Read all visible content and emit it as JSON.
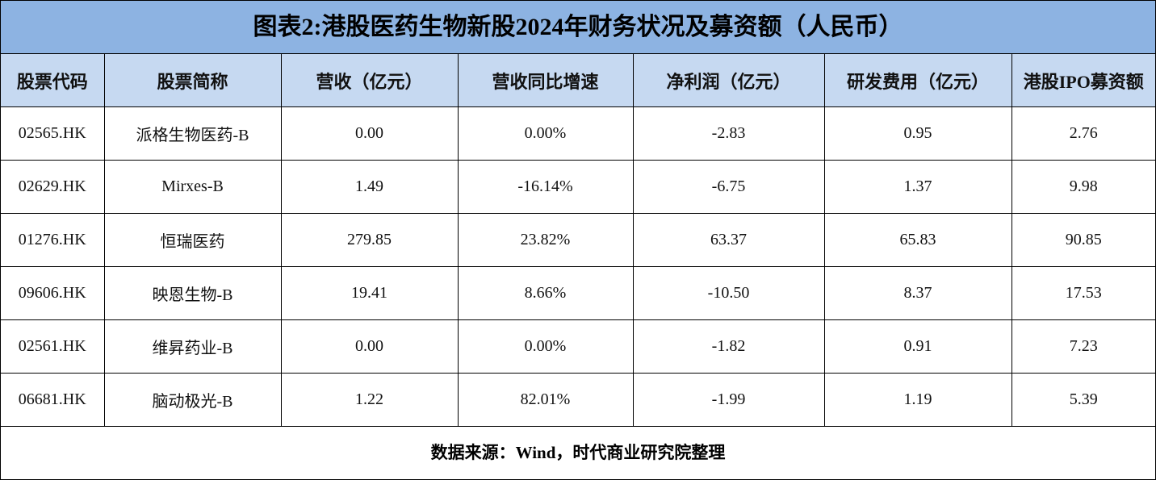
{
  "header": {
    "title": "图表2:港股医药生物新股2024年财务状况及募资额（人民币）"
  },
  "table": {
    "columns": [
      "股票代码",
      "股票简称",
      "营收（亿元）",
      "营收同比增速",
      "净利润（亿元）",
      "研发费用（亿元）",
      "港股IPO募资额"
    ],
    "rows": [
      [
        "02565.HK",
        "派格生物医药-B",
        "0.00",
        "0.00%",
        "-2.83",
        "0.95",
        "2.76"
      ],
      [
        "02629.HK",
        "Mirxes-B",
        "1.49",
        "-16.14%",
        "-6.75",
        "1.37",
        "9.98"
      ],
      [
        "01276.HK",
        "恒瑞医药",
        "279.85",
        "23.82%",
        "63.37",
        "65.83",
        "90.85"
      ],
      [
        "09606.HK",
        "映恩生物-B",
        "19.41",
        "8.66%",
        "-10.50",
        "8.37",
        "17.53"
      ],
      [
        "02561.HK",
        "维昇药业-B",
        "0.00",
        "0.00%",
        "-1.82",
        "0.91",
        "7.23"
      ],
      [
        "06681.HK",
        "脑动极光-B",
        "1.22",
        "82.01%",
        "-1.99",
        "1.19",
        "5.39"
      ]
    ]
  },
  "footer": {
    "source": "数据来源：Wind，时代商业研究院整理"
  }
}
